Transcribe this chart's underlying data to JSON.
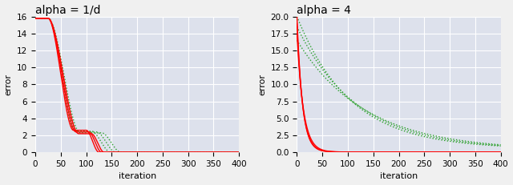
{
  "plot1_title": "alpha = 1/d",
  "plot2_title": "alpha = 4",
  "xlabel": "iteration",
  "ylabel": "error",
  "n_iterations": 400,
  "bg_color": "#dde1ec",
  "fig_bg_color": "#f0f0f0",
  "red_color": "#ff0000",
  "green_color": "#2ca02c",
  "plot1": {
    "ylim": [
      0,
      16
    ],
    "yticks": [
      0,
      2,
      4,
      6,
      8,
      10,
      12,
      14,
      16
    ],
    "red_curves": [
      [
        15.8,
        25,
        75,
        2.6,
        100,
        125,
        0.0
      ],
      [
        15.8,
        25,
        80,
        2.4,
        105,
        130,
        0.0
      ],
      [
        15.8,
        25,
        85,
        2.2,
        110,
        135,
        0.0
      ]
    ],
    "green_curves": [
      [
        15.8,
        25,
        78,
        2.5,
        110,
        148,
        0.0
      ],
      [
        15.8,
        25,
        83,
        2.4,
        120,
        158,
        0.0
      ],
      [
        15.8,
        25,
        88,
        2.3,
        130,
        168,
        0.0
      ]
    ]
  },
  "plot2": {
    "ylim": [
      0,
      20
    ],
    "yticks": [
      0.0,
      2.5,
      5.0,
      7.5,
      10.0,
      12.5,
      15.0,
      17.5,
      20.0
    ],
    "red_curves": [
      [
        20.0,
        0.095,
        0.05
      ],
      [
        19.0,
        0.09,
        0.04
      ],
      [
        17.5,
        0.08,
        0.03
      ]
    ],
    "green_curves": [
      [
        20.0,
        0.0095,
        0.5
      ],
      [
        18.5,
        0.0085,
        0.4
      ],
      [
        16.5,
        0.0075,
        0.3
      ]
    ]
  }
}
